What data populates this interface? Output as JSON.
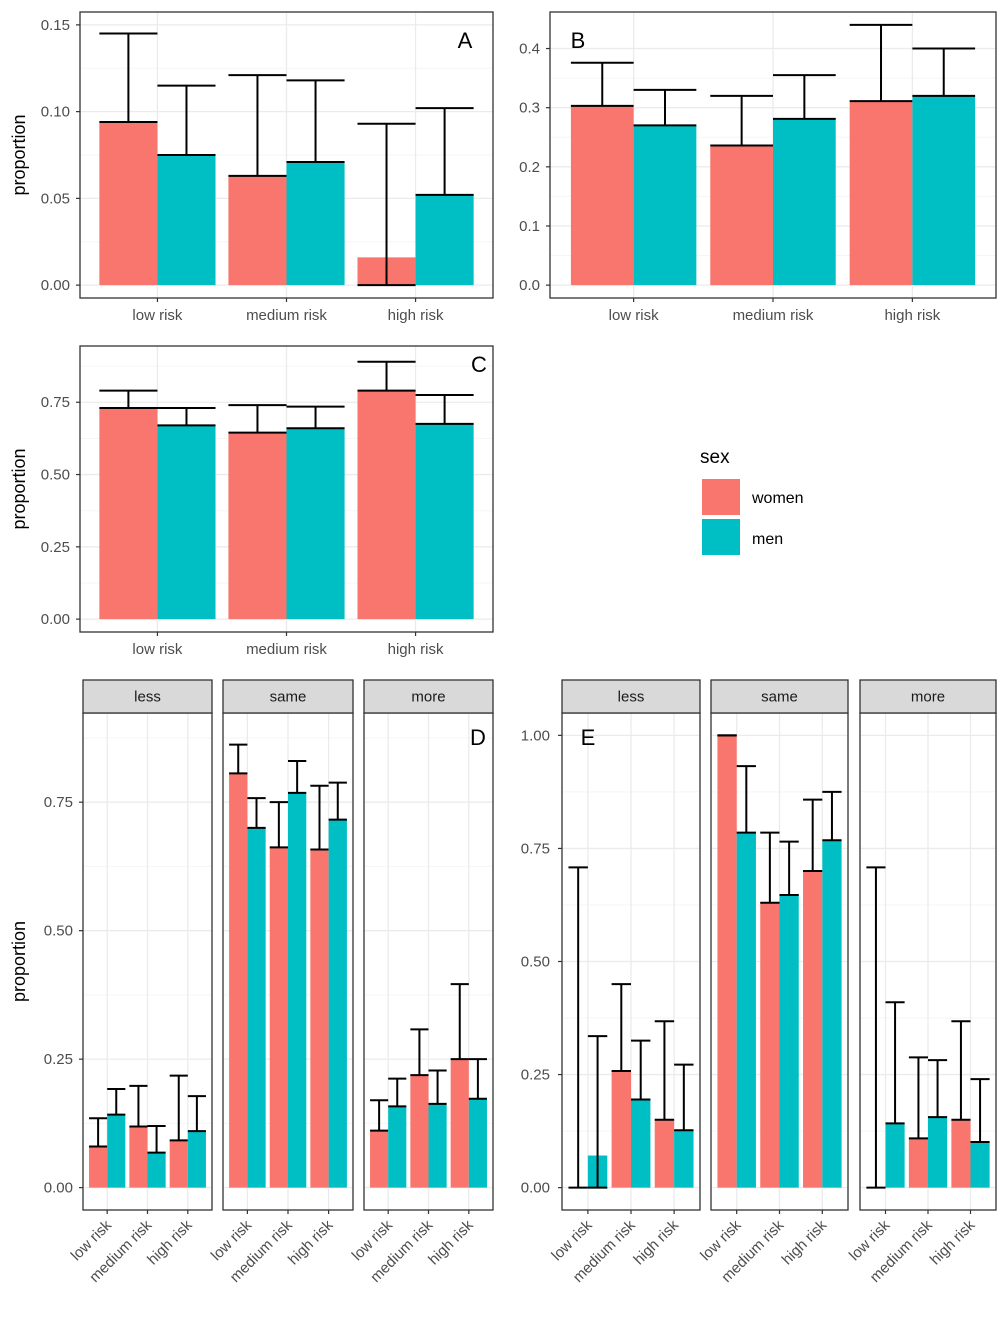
{
  "colors": {
    "women": "#F8766D",
    "men": "#00BFC4",
    "errorbar": "#000000",
    "grid_major": "#EBEBEB",
    "grid_minor": "#F5F5F5",
    "panel_border": "#333333",
    "strip_fill": "#D9D9D9",
    "tick_text": "#4D4D4D"
  },
  "legend": {
    "title": "sex",
    "items": [
      {
        "key": "women",
        "label": "women"
      },
      {
        "key": "men",
        "label": "men"
      }
    ]
  },
  "chart_data": [
    {
      "id": "A",
      "type": "bar",
      "tag": "A",
      "ylabel": "proportion",
      "categories": [
        "low risk",
        "medium risk",
        "high risk"
      ],
      "ylim": [
        0,
        0.15
      ],
      "yticks": [
        0,
        0.05,
        0.1,
        0.15
      ],
      "ytick_labels": [
        "0.00",
        "0.05",
        "0.10",
        "0.15"
      ],
      "series": [
        {
          "name": "women",
          "values": [
            0.094,
            0.063,
            0.016
          ],
          "lower": [
            0.094,
            0.063,
            0.0
          ],
          "upper": [
            0.145,
            0.121,
            0.093
          ]
        },
        {
          "name": "men",
          "values": [
            0.075,
            0.071,
            0.052
          ],
          "lower": [
            0.075,
            0.071,
            0.052
          ],
          "upper": [
            0.115,
            0.118,
            0.102
          ]
        }
      ]
    },
    {
      "id": "B",
      "type": "bar",
      "tag": "B",
      "ylabel": "",
      "categories": [
        "low risk",
        "medium risk",
        "high risk"
      ],
      "ylim": [
        0,
        0.44
      ],
      "yticks": [
        0,
        0.1,
        0.2,
        0.3,
        0.4
      ],
      "ytick_labels": [
        "0.0",
        "0.1",
        "0.2",
        "0.3",
        "0.4"
      ],
      "series": [
        {
          "name": "women",
          "values": [
            0.303,
            0.236,
            0.311
          ],
          "lower": [
            0.303,
            0.236,
            0.311
          ],
          "upper": [
            0.376,
            0.32,
            0.44
          ]
        },
        {
          "name": "men",
          "values": [
            0.27,
            0.281,
            0.32
          ],
          "lower": [
            0.27,
            0.281,
            0.32
          ],
          "upper": [
            0.33,
            0.355,
            0.4
          ]
        }
      ]
    },
    {
      "id": "C",
      "type": "bar",
      "tag": "C",
      "ylabel": "proportion",
      "categories": [
        "low risk",
        "medium risk",
        "high risk"
      ],
      "ylim": [
        0,
        0.9
      ],
      "yticks": [
        0,
        0.25,
        0.5,
        0.75
      ],
      "ytick_labels": [
        "0.00",
        "0.25",
        "0.50",
        "0.75"
      ],
      "series": [
        {
          "name": "women",
          "values": [
            0.73,
            0.645,
            0.79
          ],
          "lower": [
            0.73,
            0.645,
            0.79
          ],
          "upper": [
            0.79,
            0.74,
            0.89
          ]
        },
        {
          "name": "men",
          "values": [
            0.67,
            0.66,
            0.675
          ],
          "lower": [
            0.67,
            0.66,
            0.675
          ],
          "upper": [
            0.73,
            0.735,
            0.775
          ]
        }
      ]
    },
    {
      "id": "D",
      "type": "bar",
      "tag": "D",
      "ylabel": "proportion",
      "ylim": [
        0,
        0.88
      ],
      "yticks": [
        0,
        0.25,
        0.5,
        0.75
      ],
      "ytick_labels": [
        "0.00",
        "0.25",
        "0.50",
        "0.75"
      ],
      "categories": [
        "low risk",
        "medium risk",
        "high risk"
      ],
      "facets": [
        {
          "label": "less",
          "series": [
            {
              "name": "women",
              "values": [
                0.08,
                0.119,
                0.092
              ],
              "lower": [
                0.08,
                0.119,
                0.092
              ],
              "upper": [
                0.135,
                0.198,
                0.218
              ]
            },
            {
              "name": "men",
              "values": [
                0.142,
                0.068,
                0.11
              ],
              "lower": [
                0.142,
                0.068,
                0.11
              ],
              "upper": [
                0.192,
                0.12,
                0.178
              ]
            }
          ]
        },
        {
          "label": "same",
          "series": [
            {
              "name": "women",
              "values": [
                0.806,
                0.662,
                0.658
              ],
              "lower": [
                0.806,
                0.662,
                0.658
              ],
              "upper": [
                0.862,
                0.75,
                0.782
              ]
            },
            {
              "name": "men",
              "values": [
                0.7,
                0.768,
                0.716
              ],
              "lower": [
                0.7,
                0.768,
                0.716
              ],
              "upper": [
                0.758,
                0.83,
                0.788
              ]
            }
          ]
        },
        {
          "label": "more",
          "series": [
            {
              "name": "women",
              "values": [
                0.111,
                0.219,
                0.25
              ],
              "lower": [
                0.111,
                0.219,
                0.25
              ],
              "upper": [
                0.17,
                0.308,
                0.396
              ]
            },
            {
              "name": "men",
              "values": [
                0.158,
                0.163,
                0.173
              ],
              "lower": [
                0.158,
                0.163,
                0.173
              ],
              "upper": [
                0.212,
                0.228,
                0.25
              ]
            }
          ]
        }
      ]
    },
    {
      "id": "E",
      "type": "bar",
      "tag": "E",
      "ylabel": "",
      "ylim": [
        0,
        1.0
      ],
      "yticks": [
        0,
        0.25,
        0.5,
        0.75,
        1.0
      ],
      "ytick_labels": [
        "0.00",
        "0.25",
        "0.50",
        "0.75",
        "1.00"
      ],
      "categories": [
        "low risk",
        "medium risk",
        "high risk"
      ],
      "facets": [
        {
          "label": "less",
          "series": [
            {
              "name": "women",
              "values": [
                0.0,
                0.258,
                0.15
              ],
              "lower": [
                0.0,
                0.258,
                0.15
              ],
              "upper": [
                0.708,
                0.45,
                0.368
              ]
            },
            {
              "name": "men",
              "values": [
                0.071,
                0.195,
                0.127
              ],
              "lower": [
                0.0,
                0.195,
                0.127
              ],
              "upper": [
                0.335,
                0.325,
                0.272
              ]
            }
          ]
        },
        {
          "label": "same",
          "series": [
            {
              "name": "women",
              "values": [
                1.0,
                0.63,
                0.7
              ],
              "lower": [
                1.0,
                0.63,
                0.7
              ],
              "upper": [
                1.0,
                0.785,
                0.858
              ]
            },
            {
              "name": "men",
              "values": [
                0.785,
                0.647,
                0.768
              ],
              "lower": [
                0.785,
                0.647,
                0.768
              ],
              "upper": [
                0.932,
                0.765,
                0.875
              ]
            }
          ]
        },
        {
          "label": "more",
          "series": [
            {
              "name": "women",
              "values": [
                0.0,
                0.109,
                0.15
              ],
              "lower": [
                0.0,
                0.109,
                0.15
              ],
              "upper": [
                0.708,
                0.288,
                0.368
              ]
            },
            {
              "name": "men",
              "values": [
                0.142,
                0.156,
                0.101
              ],
              "lower": [
                0.142,
                0.156,
                0.101
              ],
              "upper": [
                0.41,
                0.282,
                0.24
              ]
            }
          ]
        }
      ]
    }
  ]
}
